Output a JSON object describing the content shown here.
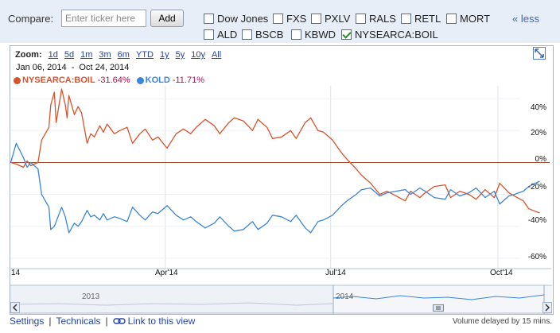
{
  "compare": {
    "label": "Compare:",
    "placeholder": "Enter ticker here",
    "add_label": "Add",
    "less_label": "« less",
    "options": [
      {
        "label": "Dow Jones",
        "checked": false
      },
      {
        "label": "FXS",
        "checked": false
      },
      {
        "label": "PXLV",
        "checked": false
      },
      {
        "label": "RALS",
        "checked": false
      },
      {
        "label": "RETL",
        "checked": false
      },
      {
        "label": "MORT",
        "checked": false
      },
      {
        "label": "ALD",
        "checked": false
      },
      {
        "label": "BSCB",
        "checked": false
      },
      {
        "label": "KBWD",
        "checked": false
      },
      {
        "label": "NYSEARCA:BOIL",
        "checked": true
      }
    ]
  },
  "chart": {
    "zoom_label": "Zoom:",
    "zoom_options": [
      "1d",
      "5d",
      "1m",
      "3m",
      "6m",
      "YTD",
      "1y",
      "5y",
      "10y",
      "All"
    ],
    "date_start": "Jan 06, 2014",
    "date_sep": "-",
    "date_end": "Oct 24, 2014",
    "legend": [
      {
        "symbol": "NYSEARCA:BOIL",
        "change": "-31.64%",
        "color": "#d9532c"
      },
      {
        "symbol": "KOLD",
        "change": "-11.71%",
        "color": "#3b86d9"
      }
    ],
    "nav_years": [
      "2013",
      "2014"
    ],
    "nav_left_edge_label": "14"
  },
  "chart_data": {
    "type": "line",
    "x_ticks": [
      "Apr'14",
      "Jul'14",
      "Oct'14"
    ],
    "y_ticks": [
      "40%",
      "20%",
      "0%",
      "-20%",
      "-40%",
      "-60%"
    ],
    "ylim": [
      -60,
      48
    ],
    "x_range": [
      "2014-01-06",
      "2014-10-24"
    ],
    "grid": true,
    "series": [
      {
        "name": "NYSEARCA:BOIL",
        "color": "#d9532c",
        "points": [
          [
            "2014-01-06",
            0
          ],
          [
            "2014-01-09",
            -1
          ],
          [
            "2014-01-13",
            -3
          ],
          [
            "2014-01-15",
            1
          ],
          [
            "2014-01-17",
            -2
          ],
          [
            "2014-01-21",
            0
          ],
          [
            "2014-01-23",
            14
          ],
          [
            "2014-01-27",
            22
          ],
          [
            "2014-01-28",
            36
          ],
          [
            "2014-01-30",
            44
          ],
          [
            "2014-01-31",
            25
          ],
          [
            "2014-02-03",
            46
          ],
          [
            "2014-02-05",
            36
          ],
          [
            "2014-02-06",
            28
          ],
          [
            "2014-02-07",
            42
          ],
          [
            "2014-02-10",
            30
          ],
          [
            "2014-02-12",
            35
          ],
          [
            "2014-02-14",
            31
          ],
          [
            "2014-02-17",
            12
          ],
          [
            "2014-02-19",
            18
          ],
          [
            "2014-02-21",
            16
          ],
          [
            "2014-02-24",
            23
          ],
          [
            "2014-02-26",
            19
          ],
          [
            "2014-02-28",
            24
          ],
          [
            "2014-03-04",
            18
          ],
          [
            "2014-03-07",
            20
          ],
          [
            "2014-03-11",
            22
          ],
          [
            "2014-03-14",
            12
          ],
          [
            "2014-03-18",
            18
          ],
          [
            "2014-03-21",
            21
          ],
          [
            "2014-03-25",
            14
          ],
          [
            "2014-03-28",
            16
          ],
          [
            "2014-04-02",
            9
          ],
          [
            "2014-04-07",
            18
          ],
          [
            "2014-04-11",
            21
          ],
          [
            "2014-04-15",
            18
          ],
          [
            "2014-04-18",
            22
          ],
          [
            "2014-04-23",
            27
          ],
          [
            "2014-04-28",
            23
          ],
          [
            "2014-05-01",
            18
          ],
          [
            "2014-05-06",
            25
          ],
          [
            "2014-05-09",
            28
          ],
          [
            "2014-05-14",
            26
          ],
          [
            "2014-05-19",
            20
          ],
          [
            "2014-05-22",
            27
          ],
          [
            "2014-05-27",
            22
          ],
          [
            "2014-05-30",
            15
          ],
          [
            "2014-06-04",
            16
          ],
          [
            "2014-06-09",
            20
          ],
          [
            "2014-06-12",
            15
          ],
          [
            "2014-06-17",
            25
          ],
          [
            "2014-06-20",
            28
          ],
          [
            "2014-06-24",
            20
          ],
          [
            "2014-06-27",
            19
          ],
          [
            "2014-07-02",
            14
          ],
          [
            "2014-07-07",
            6
          ],
          [
            "2014-07-10",
            2
          ],
          [
            "2014-07-15",
            -4
          ],
          [
            "2014-07-18",
            -8
          ],
          [
            "2014-07-23",
            -13
          ],
          [
            "2014-07-28",
            -20
          ],
          [
            "2014-08-01",
            -18
          ],
          [
            "2014-08-06",
            -21
          ],
          [
            "2014-08-11",
            -24
          ],
          [
            "2014-08-14",
            -18
          ],
          [
            "2014-08-19",
            -22
          ],
          [
            "2014-08-22",
            -19
          ],
          [
            "2014-08-27",
            -15
          ],
          [
            "2014-09-02",
            -14
          ],
          [
            "2014-09-05",
            -22
          ],
          [
            "2014-09-10",
            -18
          ],
          [
            "2014-09-15",
            -20
          ],
          [
            "2014-09-19",
            -23
          ],
          [
            "2014-09-24",
            -17
          ],
          [
            "2014-09-29",
            -22
          ],
          [
            "2014-10-02",
            -13
          ],
          [
            "2014-10-07",
            -19
          ],
          [
            "2014-10-10",
            -21
          ],
          [
            "2014-10-15",
            -24
          ],
          [
            "2014-10-18",
            -29
          ],
          [
            "2014-10-24",
            -31.64
          ]
        ]
      },
      {
        "name": "KOLD",
        "color": "#3b86d9",
        "points": [
          [
            "2014-01-06",
            0
          ],
          [
            "2014-01-08",
            8
          ],
          [
            "2014-01-09",
            12
          ],
          [
            "2014-01-13",
            3
          ],
          [
            "2014-01-15",
            -3
          ],
          [
            "2014-01-17",
            0
          ],
          [
            "2014-01-21",
            -4
          ],
          [
            "2014-01-23",
            -20
          ],
          [
            "2014-01-27",
            -28
          ],
          [
            "2014-01-28",
            -42
          ],
          [
            "2014-01-30",
            -40
          ],
          [
            "2014-02-03",
            -28
          ],
          [
            "2014-02-05",
            -34
          ],
          [
            "2014-02-07",
            -44
          ],
          [
            "2014-02-10",
            -38
          ],
          [
            "2014-02-12",
            -40
          ],
          [
            "2014-02-14",
            -37
          ],
          [
            "2014-02-17",
            -30
          ],
          [
            "2014-02-19",
            -34
          ],
          [
            "2014-02-21",
            -33
          ],
          [
            "2014-02-24",
            -36
          ],
          [
            "2014-02-26",
            -32
          ],
          [
            "2014-02-28",
            -36
          ],
          [
            "2014-03-04",
            -34
          ],
          [
            "2014-03-07",
            -35
          ],
          [
            "2014-03-11",
            -37
          ],
          [
            "2014-03-14",
            -28
          ],
          [
            "2014-03-18",
            -33
          ],
          [
            "2014-03-21",
            -36
          ],
          [
            "2014-03-25",
            -31
          ],
          [
            "2014-03-28",
            -32
          ],
          [
            "2014-04-02",
            -27
          ],
          [
            "2014-04-07",
            -33
          ],
          [
            "2014-04-11",
            -36
          ],
          [
            "2014-04-15",
            -34
          ],
          [
            "2014-04-18",
            -37
          ],
          [
            "2014-04-23",
            -41
          ],
          [
            "2014-04-28",
            -38
          ],
          [
            "2014-05-01",
            -34
          ],
          [
            "2014-05-06",
            -40
          ],
          [
            "2014-05-09",
            -43
          ],
          [
            "2014-05-14",
            -42
          ],
          [
            "2014-05-19",
            -37
          ],
          [
            "2014-05-22",
            -42
          ],
          [
            "2014-05-27",
            -38
          ],
          [
            "2014-05-30",
            -33
          ],
          [
            "2014-06-04",
            -34
          ],
          [
            "2014-06-09",
            -37
          ],
          [
            "2014-06-12",
            -33
          ],
          [
            "2014-06-17",
            -41
          ],
          [
            "2014-06-20",
            -44
          ],
          [
            "2014-06-24",
            -37
          ],
          [
            "2014-06-27",
            -36
          ],
          [
            "2014-07-02",
            -33
          ],
          [
            "2014-07-07",
            -27
          ],
          [
            "2014-07-10",
            -24
          ],
          [
            "2014-07-15",
            -20
          ],
          [
            "2014-07-18",
            -17
          ],
          [
            "2014-07-23",
            -16
          ],
          [
            "2014-07-28",
            -21
          ],
          [
            "2014-08-01",
            -19
          ],
          [
            "2014-08-06",
            -18
          ],
          [
            "2014-08-11",
            -17
          ],
          [
            "2014-08-14",
            -20
          ],
          [
            "2014-08-19",
            -16
          ],
          [
            "2014-08-22",
            -18
          ],
          [
            "2014-08-27",
            -22
          ],
          [
            "2014-09-02",
            -23
          ],
          [
            "2014-09-05",
            -17
          ],
          [
            "2014-09-10",
            -21
          ],
          [
            "2014-09-15",
            -19
          ],
          [
            "2014-09-19",
            -16
          ],
          [
            "2014-09-24",
            -22
          ],
          [
            "2014-09-29",
            -18
          ],
          [
            "2014-10-02",
            -26
          ],
          [
            "2014-10-07",
            -21
          ],
          [
            "2014-10-10",
            -20
          ],
          [
            "2014-10-15",
            -18
          ],
          [
            "2014-10-18",
            -15
          ],
          [
            "2014-10-24",
            -11.71
          ]
        ]
      }
    ]
  },
  "footer": {
    "settings": "Settings",
    "technicals": "Technicals",
    "link_label": "Link to this view",
    "delay_note": "Volume delayed by 15 mins."
  }
}
